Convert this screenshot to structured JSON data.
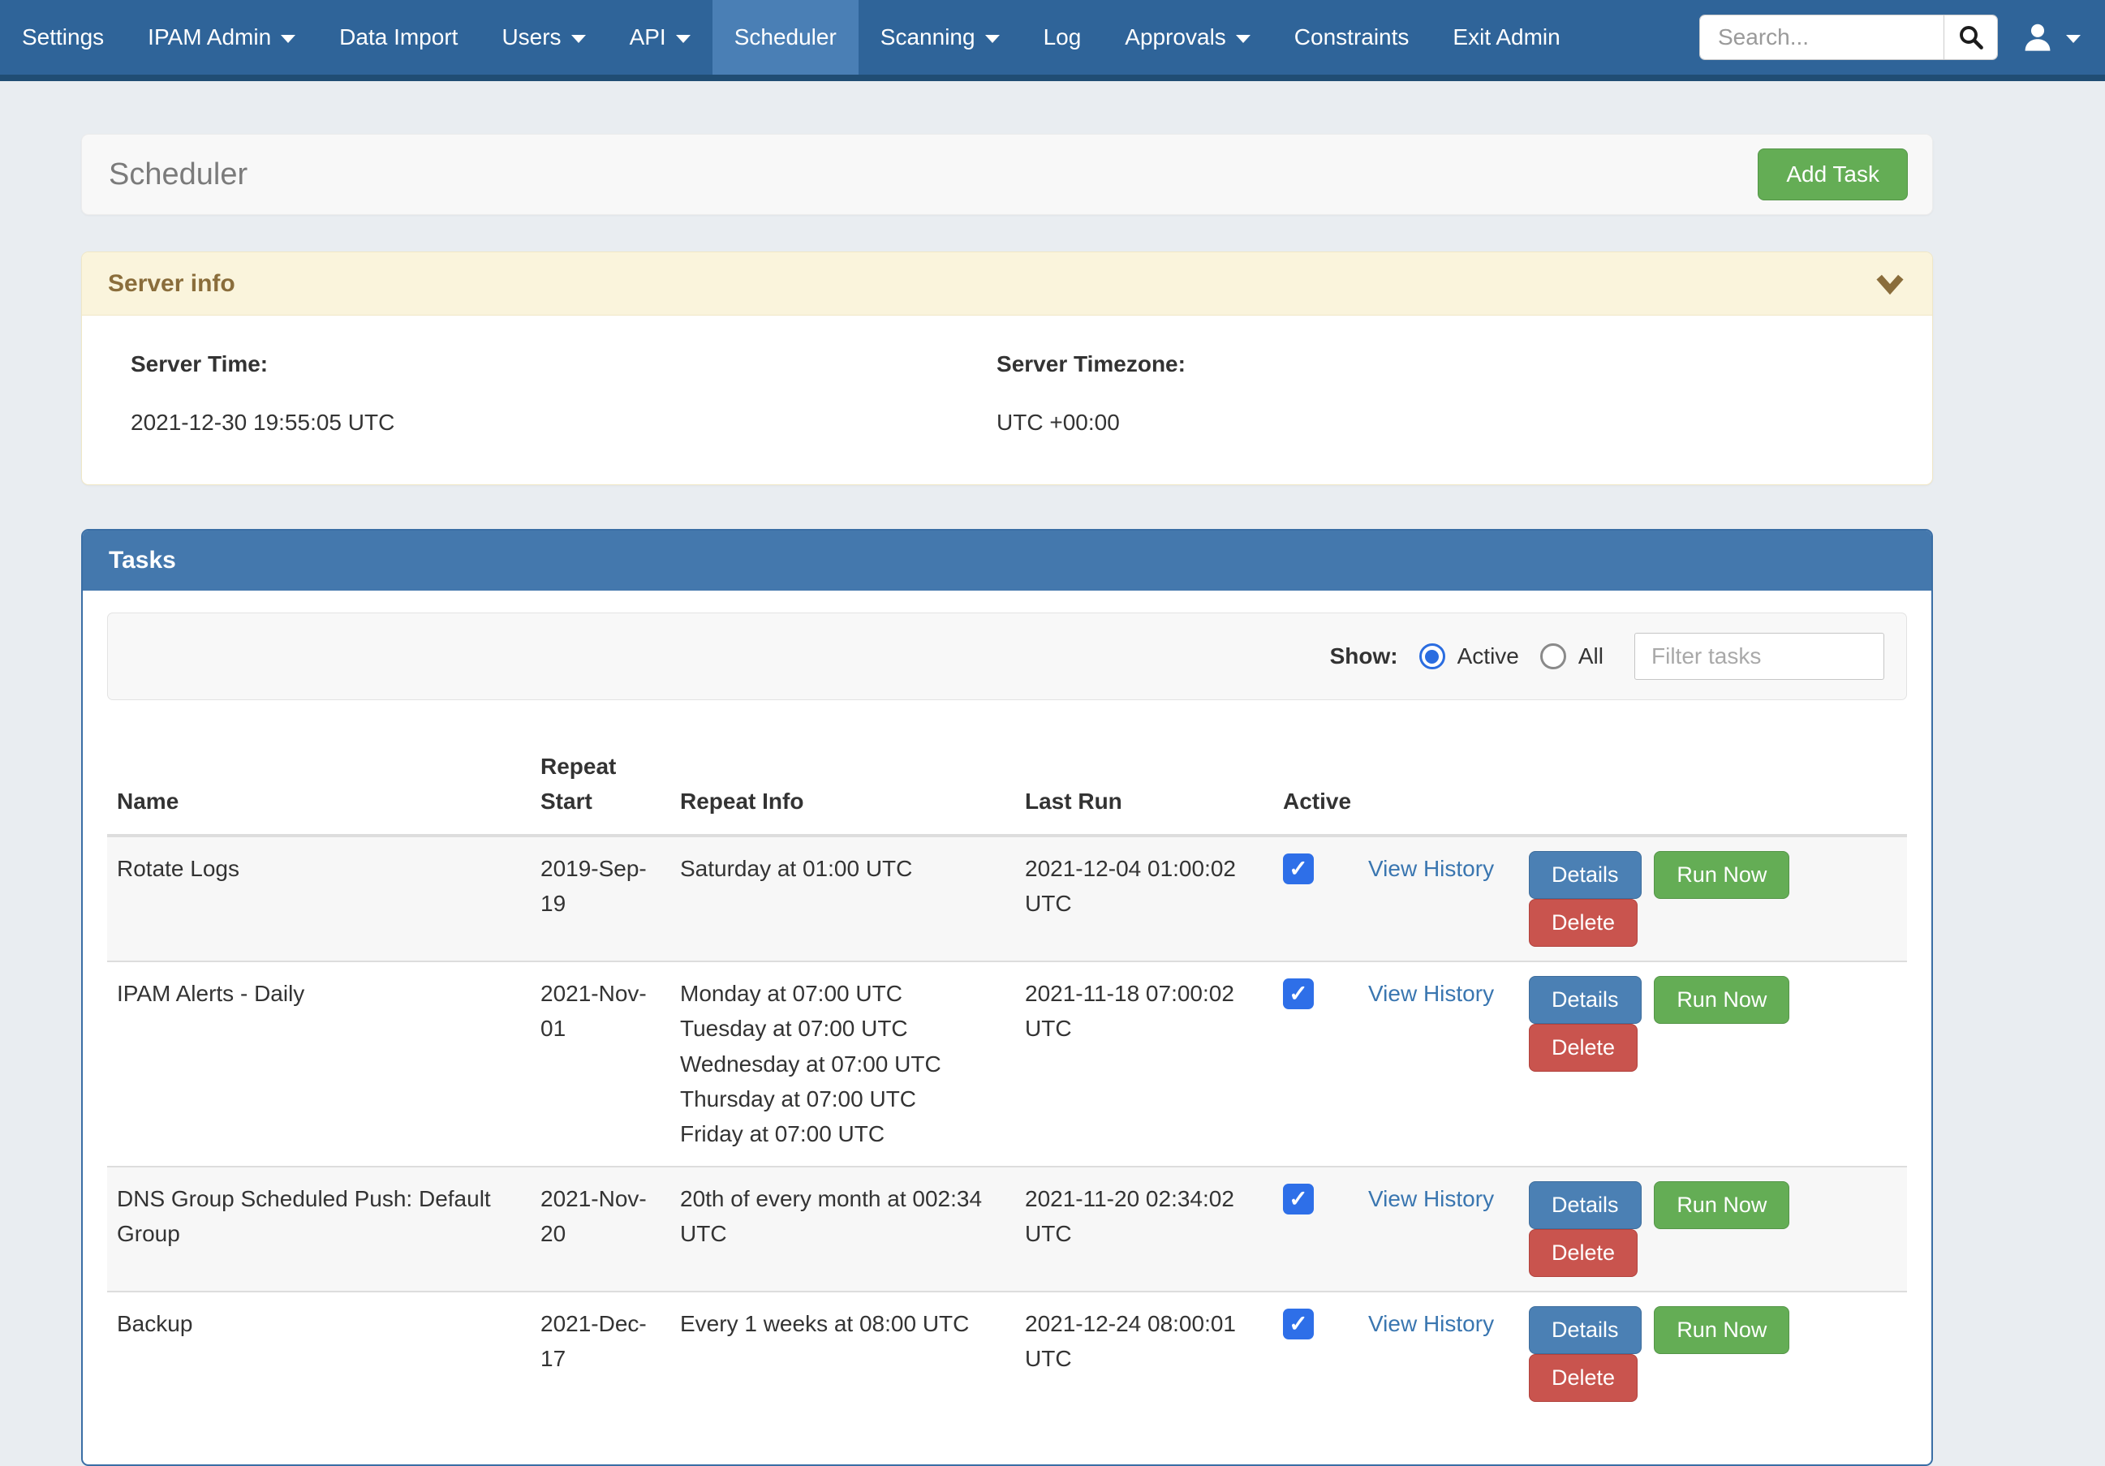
{
  "navbar": {
    "items": [
      {
        "label": "Settings",
        "dropdown": false,
        "active": false
      },
      {
        "label": "IPAM Admin",
        "dropdown": true,
        "active": false
      },
      {
        "label": "Data Import",
        "dropdown": false,
        "active": false
      },
      {
        "label": "Users",
        "dropdown": true,
        "active": false
      },
      {
        "label": "API",
        "dropdown": true,
        "active": false
      },
      {
        "label": "Scheduler",
        "dropdown": false,
        "active": true
      },
      {
        "label": "Scanning",
        "dropdown": true,
        "active": false
      },
      {
        "label": "Log",
        "dropdown": false,
        "active": false
      },
      {
        "label": "Approvals",
        "dropdown": true,
        "active": false
      },
      {
        "label": "Constraints",
        "dropdown": false,
        "active": false
      },
      {
        "label": "Exit Admin",
        "dropdown": false,
        "active": false
      }
    ],
    "search_placeholder": "Search..."
  },
  "page": {
    "title": "Scheduler",
    "add_task_label": "Add Task"
  },
  "server_info": {
    "title": "Server info",
    "server_time_label": "Server Time:",
    "server_time": "2021-12-30 19:55:05 UTC",
    "server_timezone_label": "Server Timezone:",
    "server_timezone": "UTC +00:00"
  },
  "tasks": {
    "title": "Tasks",
    "show_label": "Show:",
    "radio_active_label": "Active",
    "radio_all_label": "All",
    "radio_selected": "Active",
    "filter_placeholder": "Filter tasks",
    "columns": [
      "Name",
      "Repeat Start",
      "Repeat Info",
      "Last Run",
      "Active"
    ],
    "view_history_label": "View History",
    "buttons": {
      "details": "Details",
      "run_now": "Run Now",
      "delete": "Delete"
    },
    "rows": [
      {
        "name": "Rotate Logs",
        "repeat_start": "2019-Sep-19",
        "repeat_info": [
          "Saturday at 01:00 UTC"
        ],
        "last_run": "2021-12-04 01:00:02 UTC",
        "active": true
      },
      {
        "name": "IPAM Alerts - Daily",
        "repeat_start": "2021-Nov-01",
        "repeat_info": [
          "Monday at 07:00 UTC",
          "Tuesday at 07:00 UTC",
          "Wednesday at 07:00 UTC",
          "Thursday at 07:00 UTC",
          "Friday at 07:00 UTC"
        ],
        "last_run": "2021-11-18 07:00:02 UTC",
        "active": true
      },
      {
        "name": "DNS Group Scheduled Push: Default Group",
        "repeat_start": "2021-Nov-20",
        "repeat_info": [
          "20th of every month at 002:34 UTC"
        ],
        "last_run": "2021-11-20 02:34:02 UTC",
        "active": true
      },
      {
        "name": "Backup",
        "repeat_start": "2021-Dec-17",
        "repeat_info": [
          "Every 1 weeks at 08:00 UTC"
        ],
        "last_run": "2021-12-24 08:00:01 UTC",
        "active": true
      }
    ]
  },
  "colors": {
    "navbar_bg": "#2f6499",
    "navbar_active_bg": "#4a7fb5",
    "navbar_border": "#204d74",
    "page_bg": "#e9edf1",
    "panel_header_blue": "#4478ad",
    "panel_border_blue": "#3a6ea5",
    "warning_bg": "#faf4dc",
    "warning_border": "#f0e7c6",
    "warning_text": "#8a6d3b",
    "btn_green": "#64ad55",
    "btn_blue": "#4b80b4",
    "btn_red": "#c9544e",
    "link": "#3a76b0",
    "checkbox_blue": "#2e6fe8",
    "radio_blue": "#2b6de0"
  }
}
